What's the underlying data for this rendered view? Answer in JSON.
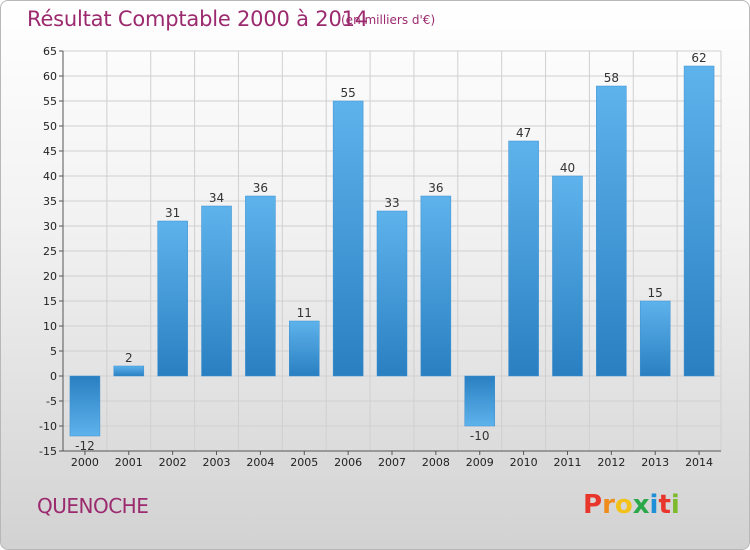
{
  "header": {
    "title": "Résultat Comptable 2000 à 2014",
    "subtitle": "(en milliers d'€)"
  },
  "footer": {
    "commune": "QUENOCHE",
    "logo": [
      "P",
      "r",
      "o",
      "x",
      "i",
      "t",
      "i"
    ],
    "logo_colors": [
      "#e8362d",
      "#f08c1e",
      "#f2c21b",
      "#2aa84a",
      "#1f8fd8",
      "#e8362d",
      "#7dbb2c"
    ]
  },
  "colors": {
    "bar_light": "#5eb3ec",
    "bar_dark": "#2a7fc1",
    "grid": "#d0d0d0",
    "axis": "#555555",
    "accent": "#9b2a6e"
  },
  "chart_data": {
    "type": "bar",
    "title": "Résultat Comptable 2000 à 2014",
    "subtitle": "(en milliers d'€)",
    "categories": [
      "2000",
      "2001",
      "2002",
      "2003",
      "2004",
      "2005",
      "2006",
      "2007",
      "2008",
      "2009",
      "2010",
      "2011",
      "2012",
      "2013",
      "2014"
    ],
    "values": [
      -12,
      2,
      31,
      34,
      36,
      11,
      55,
      33,
      36,
      -10,
      47,
      40,
      58,
      15,
      62
    ],
    "value_labels": [
      "-12",
      "2",
      "31",
      "34",
      "36",
      "11",
      "55",
      "33",
      "36",
      "-10",
      "47",
      "40",
      "58",
      "15",
      "62"
    ],
    "yticks": [
      "-15",
      "-10",
      "-5",
      "0",
      "5",
      "10",
      "15",
      "20",
      "25",
      "30",
      "35",
      "40",
      "45",
      "50",
      "55",
      "60",
      "65"
    ],
    "ylim": [
      -15,
      65
    ],
    "grid": true,
    "legend": "none"
  }
}
